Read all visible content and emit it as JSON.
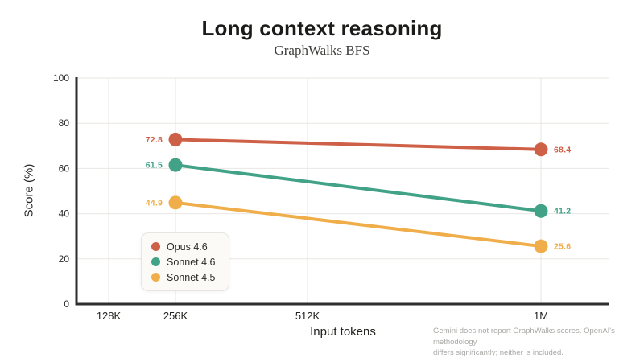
{
  "header": {
    "title": "Long context reasoning",
    "subtitle": "GraphWalks BFS"
  },
  "chart_data": {
    "type": "line",
    "title": "Long context reasoning",
    "subtitle": "GraphWalks BFS",
    "xlabel": "Input tokens",
    "ylabel": "Score (%)",
    "ylim": [
      0,
      100
    ],
    "yticks": [
      0,
      20,
      40,
      60,
      80,
      100
    ],
    "xticks": [
      "128K",
      "256K",
      "512K",
      "1M"
    ],
    "grid": true,
    "legend_position": "lower-left",
    "series": [
      {
        "name": "Opus 4.6",
        "color": "#CE6047",
        "x": [
          "256K",
          "1M"
        ],
        "values": [
          72.8,
          68.4
        ]
      },
      {
        "name": "Sonnet 4.6",
        "color": "#42A287",
        "x": [
          "256K",
          "1M"
        ],
        "values": [
          61.5,
          41.2
        ]
      },
      {
        "name": "Sonnet 4.5",
        "color": "#EFAE49",
        "x": [
          "256K",
          "1M"
        ],
        "values": [
          44.9,
          25.6
        ]
      }
    ],
    "annotations": [
      "Gemini does not report GraphWalks scores. OpenAI's methodology",
      "differs significantly; neither is included."
    ],
    "colors": {
      "axis": "#2E2E2E",
      "gridline": "#EAE7E2",
      "footnote_text": "#A8A8A5"
    }
  }
}
